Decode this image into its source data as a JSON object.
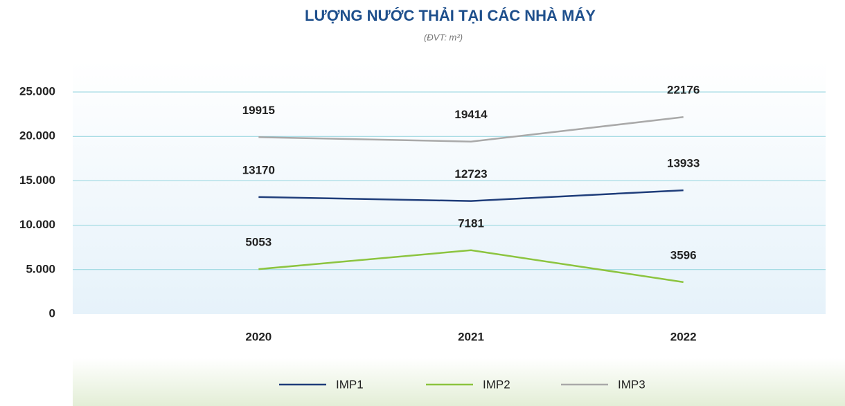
{
  "chart_data": {
    "type": "line",
    "title": "LƯỢNG NƯỚC THẢI TẠI CÁC NHÀ MÁY",
    "subtitle": "(ĐVT: m³)",
    "categories": [
      "2020",
      "2021",
      "2022"
    ],
    "series": [
      {
        "name": "IMP1",
        "color": "#1f3d7a",
        "values": [
          13170,
          12723,
          13933
        ]
      },
      {
        "name": "IMP2",
        "color": "#8cc43f",
        "values": [
          5053,
          7181,
          3596
        ]
      },
      {
        "name": "IMP3",
        "color": "#a9a9a9",
        "values": [
          19915,
          19414,
          22176
        ]
      }
    ],
    "ylim": [
      0,
      25000
    ],
    "yticks": [
      0,
      {
        "value": 5000,
        "label": "5.000"
      },
      {
        "value": 10000,
        "label": "10.000"
      },
      {
        "value": 15000,
        "label": "15.000"
      },
      {
        "value": 20000,
        "label": "20.000"
      },
      {
        "value": 25000,
        "label": "25.000"
      }
    ],
    "grid": true,
    "legend": "bottom"
  }
}
